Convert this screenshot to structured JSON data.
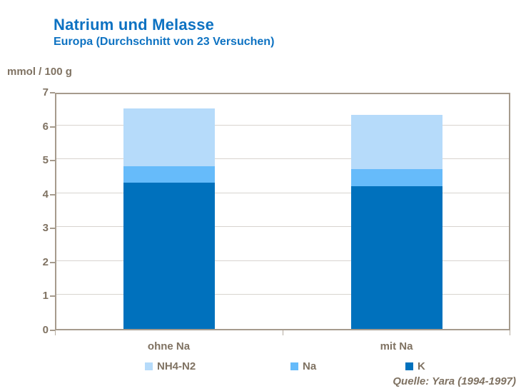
{
  "header": {
    "title": "Natrium und Melasse",
    "subtitle": "Europa (Durchschnitt von 23 Versuchen)"
  },
  "source": "Quelle: Yara (1994-1997)",
  "colors": {
    "title_blue": "#0d72c2",
    "text_brown": "#7f7262",
    "frame": "#a69b8d",
    "gridline": "#d8d4cf",
    "series_nh4": "#b6dbfa",
    "series_na": "#66bbfa",
    "series_k": "#0071bd"
  },
  "chart_data": {
    "type": "bar",
    "stacked": true,
    "title": "Natrium und Melasse",
    "subtitle": "Europa (Durchschnitt von 23 Versuchen)",
    "ylabel": "mmol / 100 g",
    "xlabel": "",
    "categories": [
      "ohne Na",
      "mit Na"
    ],
    "series": [
      {
        "name": "K",
        "color": "#0071bd",
        "values": [
          4.3,
          4.2
        ]
      },
      {
        "name": "Na",
        "color": "#66bbfa",
        "values": [
          0.5,
          0.5
        ]
      },
      {
        "name": "NH4-N2",
        "color": "#b6dbfa",
        "values": [
          1.7,
          1.6
        ]
      }
    ],
    "totals": [
      6.5,
      6.3
    ],
    "ylim": [
      0,
      7
    ],
    "yticks": [
      0,
      1,
      2,
      3,
      4,
      5,
      6,
      7
    ],
    "grid": true,
    "legend_position": "bottom",
    "legend_order": [
      "NH4-N2",
      "Na",
      "K"
    ],
    "annotations": [
      "Quelle: Yara (1994-1997)"
    ]
  }
}
